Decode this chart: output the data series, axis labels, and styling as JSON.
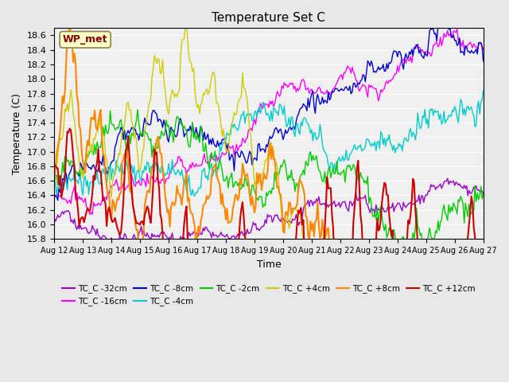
{
  "title": "Temperature Set C",
  "xlabel": "Time",
  "ylabel": "Temperature (C)",
  "ylim": [
    15.8,
    18.7
  ],
  "xlim": [
    0,
    360
  ],
  "x_tick_labels": [
    "Aug 12",
    "Aug 13",
    "Aug 14",
    "Aug 15",
    "Aug 16",
    "Aug 17",
    "Aug 18",
    "Aug 19",
    "Aug 20",
    "Aug 21",
    "Aug 22",
    "Aug 23",
    "Aug 24",
    "Aug 25",
    "Aug 26",
    "Aug 27"
  ],
  "x_tick_positions": [
    0,
    24,
    48,
    72,
    96,
    120,
    144,
    168,
    192,
    216,
    240,
    264,
    288,
    312,
    336,
    360
  ],
  "series_colors": {
    "TC_C -32cm": "#9900cc",
    "TC_C -16cm": "#ff00ff",
    "TC_C -8cm": "#0000cc",
    "TC_C -4cm": "#00cccc",
    "TC_C -2cm": "#00cc00",
    "TC_C +4cm": "#cccc00",
    "TC_C +8cm": "#ff8800",
    "TC_C +12cm": "#cc0000"
  },
  "wp_met_box_color": "#ffffcc",
  "wp_met_text_color": "#880000",
  "wp_met_border_color": "#888844",
  "background_color": "#e8e8e8",
  "plot_bg_color": "#f0f0f0",
  "n_points": 361
}
